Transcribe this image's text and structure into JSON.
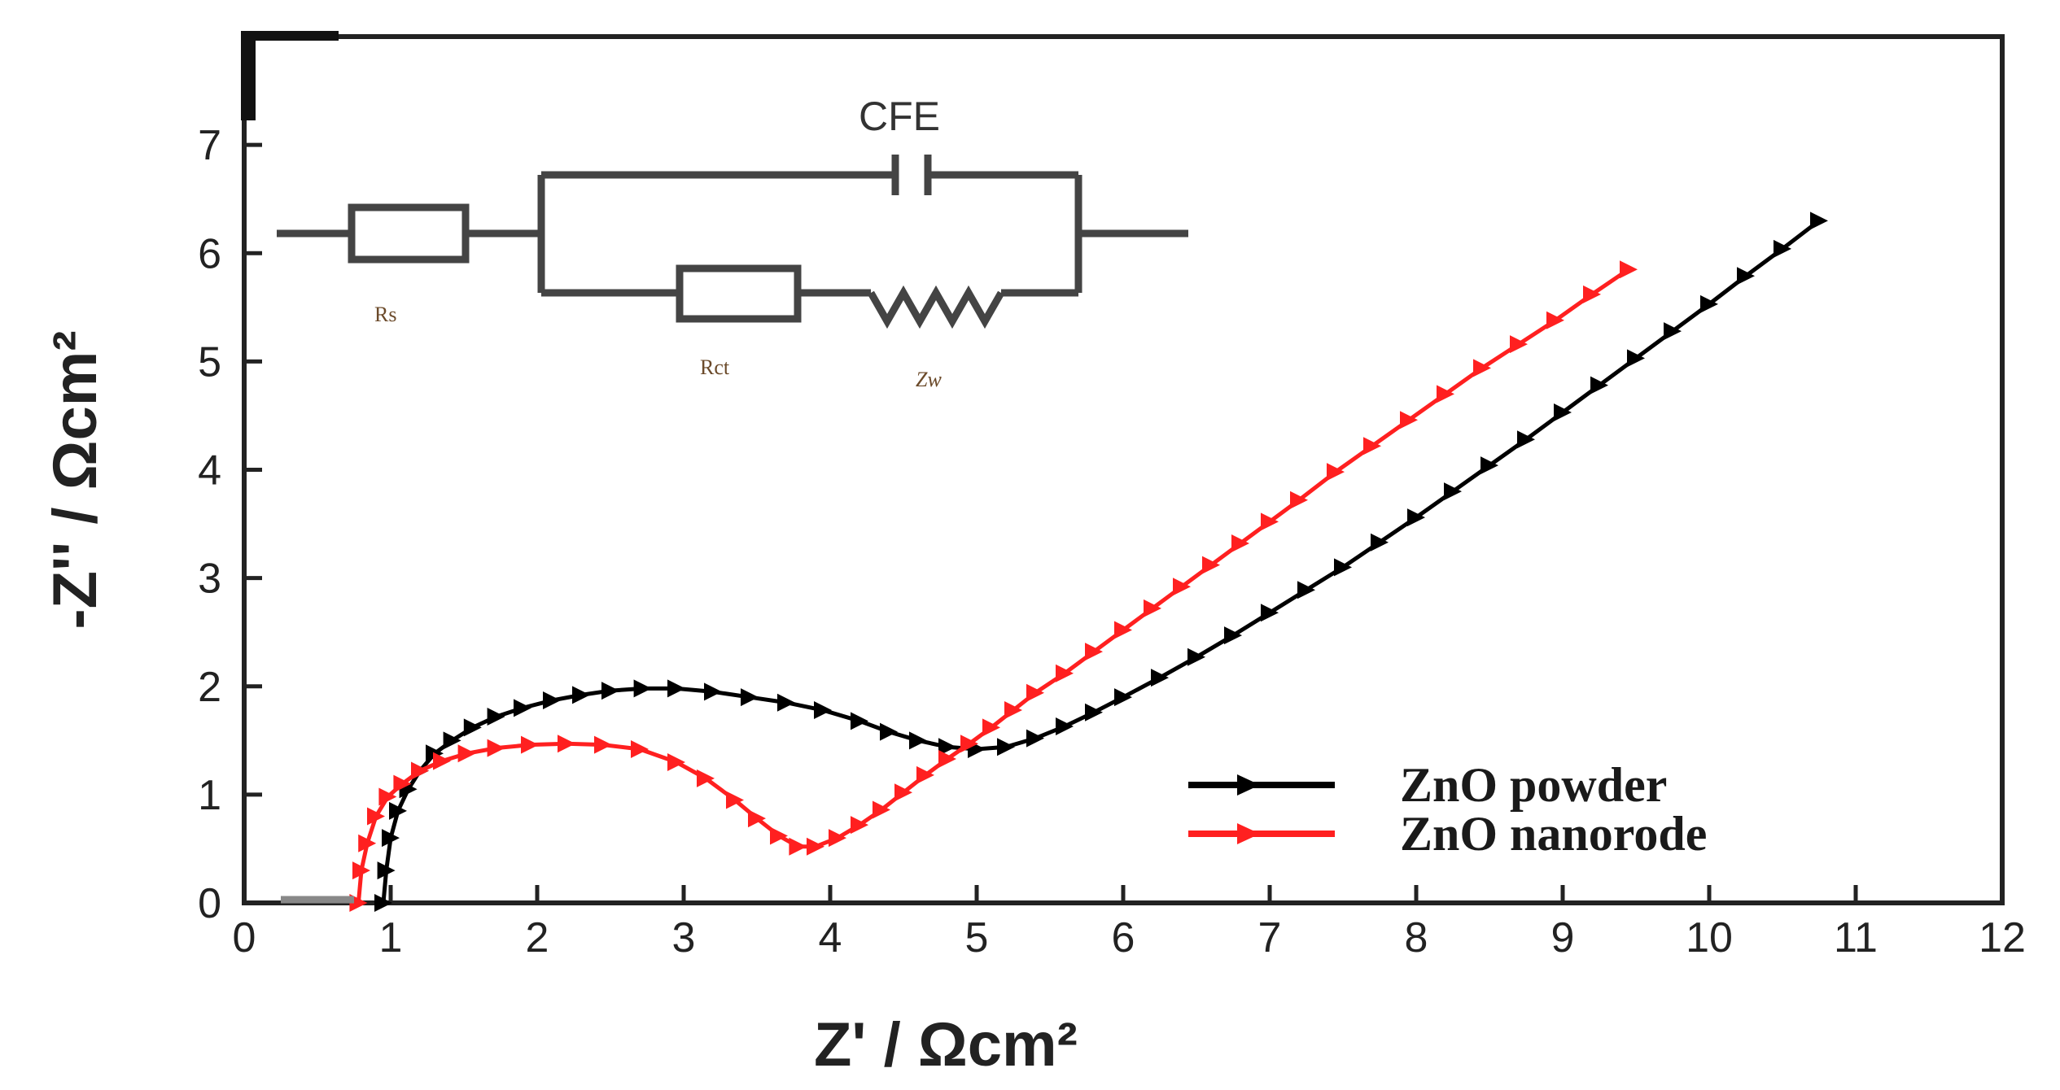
{
  "chart_data": {
    "type": "scatter",
    "xlabel": "Z' / Ωcm²",
    "ylabel": "-Z'' / Ωcm²",
    "xlim": [
      0,
      12
    ],
    "ylim": [
      0,
      8
    ],
    "xticks": [
      0,
      1,
      2,
      3,
      4,
      5,
      6,
      7,
      8,
      9,
      10,
      11,
      12
    ],
    "yticks": [
      0,
      1,
      2,
      3,
      4,
      5,
      6,
      7
    ],
    "grid": false,
    "legend_position": "bottom-right",
    "series": [
      {
        "name": "ZnO powder",
        "color": "#000000",
        "marker": "triangle",
        "x": [
          0.95,
          0.97,
          1.0,
          1.05,
          1.12,
          1.2,
          1.3,
          1.42,
          1.56,
          1.72,
          1.9,
          2.1,
          2.3,
          2.5,
          2.72,
          2.95,
          3.2,
          3.45,
          3.7,
          3.95,
          4.2,
          4.4,
          4.6,
          4.8,
          5.0,
          5.2,
          5.4,
          5.6,
          5.8,
          6.0,
          6.25,
          6.5,
          6.75,
          7.0,
          7.25,
          7.5,
          7.75,
          8.0,
          8.25,
          8.5,
          8.75,
          9.0,
          9.25,
          9.5,
          9.75,
          10.0,
          10.25,
          10.5,
          10.75
        ],
        "y": [
          0.0,
          0.3,
          0.6,
          0.85,
          1.05,
          1.22,
          1.38,
          1.5,
          1.62,
          1.72,
          1.8,
          1.87,
          1.92,
          1.96,
          1.98,
          1.98,
          1.95,
          1.9,
          1.85,
          1.78,
          1.68,
          1.58,
          1.5,
          1.44,
          1.42,
          1.44,
          1.52,
          1.63,
          1.76,
          1.9,
          2.08,
          2.27,
          2.47,
          2.68,
          2.89,
          3.1,
          3.33,
          3.56,
          3.8,
          4.04,
          4.28,
          4.53,
          4.78,
          5.03,
          5.28,
          5.53,
          5.79,
          6.04,
          6.3
        ]
      },
      {
        "name": "ZnO nanorode",
        "color": "#ff2020",
        "marker": "triangle",
        "x": [
          0.78,
          0.8,
          0.84,
          0.9,
          0.98,
          1.08,
          1.2,
          1.35,
          1.52,
          1.72,
          1.95,
          2.2,
          2.45,
          2.7,
          2.95,
          3.15,
          3.35,
          3.5,
          3.65,
          3.78,
          3.9,
          4.05,
          4.2,
          4.35,
          4.5,
          4.65,
          4.8,
          4.95,
          5.1,
          5.25,
          5.4,
          5.6,
          5.8,
          6.0,
          6.2,
          6.4,
          6.6,
          6.8,
          7.0,
          7.2,
          7.45,
          7.7,
          7.95,
          8.2,
          8.45,
          8.7,
          8.95,
          9.2,
          9.45
        ],
        "y": [
          0.0,
          0.3,
          0.55,
          0.8,
          0.98,
          1.1,
          1.22,
          1.31,
          1.38,
          1.43,
          1.46,
          1.47,
          1.46,
          1.42,
          1.3,
          1.15,
          0.95,
          0.78,
          0.62,
          0.52,
          0.52,
          0.6,
          0.72,
          0.86,
          1.02,
          1.18,
          1.33,
          1.47,
          1.62,
          1.78,
          1.94,
          2.12,
          2.32,
          2.52,
          2.72,
          2.92,
          3.12,
          3.32,
          3.52,
          3.72,
          3.98,
          4.22,
          4.46,
          4.7,
          4.94,
          5.16,
          5.38,
          5.62,
          5.85
        ]
      }
    ],
    "inset": {
      "labels": {
        "cpe": "CFE",
        "rs": "Rs",
        "rct": "Rct",
        "zw": "Zw"
      }
    }
  }
}
